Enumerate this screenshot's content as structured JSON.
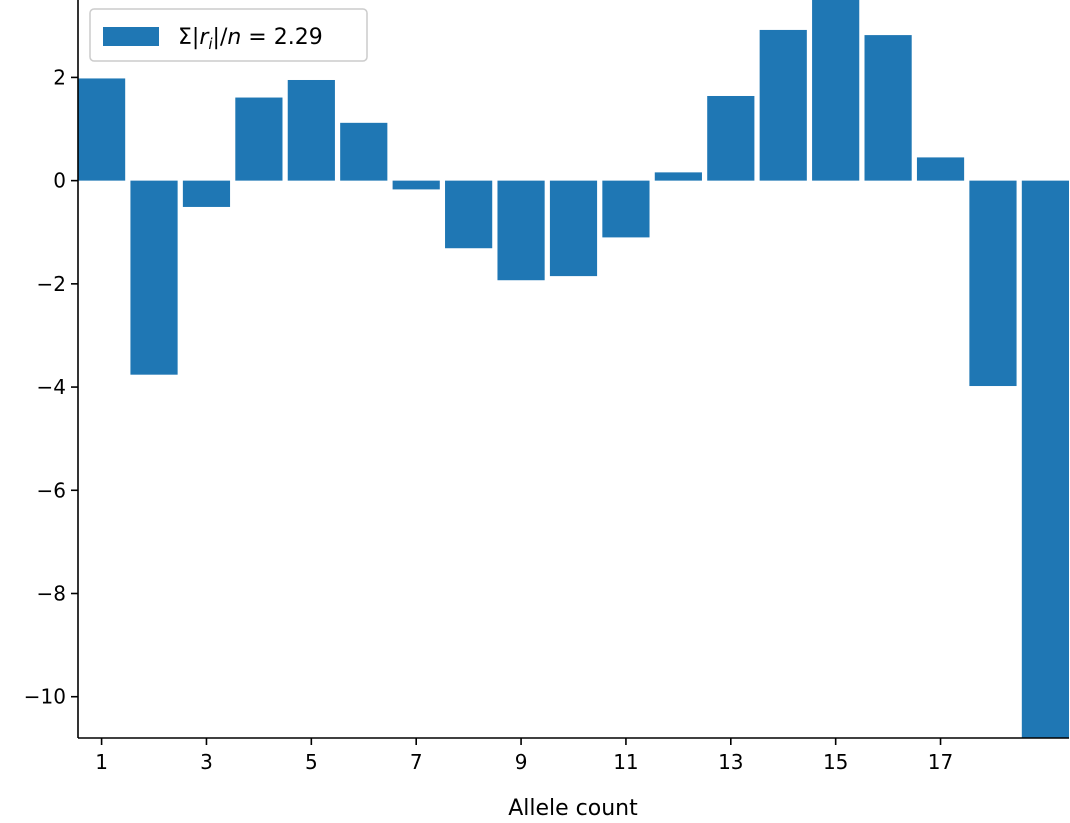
{
  "chart_data": {
    "type": "bar",
    "x": [
      1,
      2,
      3,
      4,
      5,
      6,
      7,
      8,
      9,
      10,
      11,
      12,
      13,
      14,
      15,
      16,
      17,
      18,
      19
    ],
    "series": [
      {
        "name": "Σ|r_i|/n = 2.29",
        "values": [
          1.98,
          -3.76,
          -0.51,
          1.61,
          1.95,
          1.12,
          -0.17,
          -1.31,
          -1.93,
          -1.85,
          -1.1,
          0.16,
          1.64,
          2.92,
          3.5,
          2.82,
          0.45,
          -3.98,
          -10.8
        ],
        "color": "#1f77b4"
      }
    ],
    "xlabel": "Allele count",
    "ylabel": "",
    "xlim": [
      0.55,
      19.45
    ],
    "ylim": [
      -10.8,
      3.5
    ],
    "xticks": [
      1,
      3,
      5,
      7,
      9,
      11,
      13,
      15,
      17
    ],
    "xtick_labels": [
      "1",
      "3",
      "5",
      "7",
      "9",
      "11",
      "13",
      "15",
      "17"
    ],
    "yticks": [
      -10,
      -8,
      -6,
      -4,
      -2,
      0,
      2
    ],
    "ytick_labels": [
      "−10",
      "−8",
      "−6",
      "−4",
      "−2",
      "0",
      "2"
    ],
    "grid": false,
    "legend": {
      "placement": "top-left",
      "prefix": "Σ|",
      "r": "r",
      "sub": "i",
      "mid": "|/",
      "n": "n",
      "value": " = 2.29"
    }
  }
}
